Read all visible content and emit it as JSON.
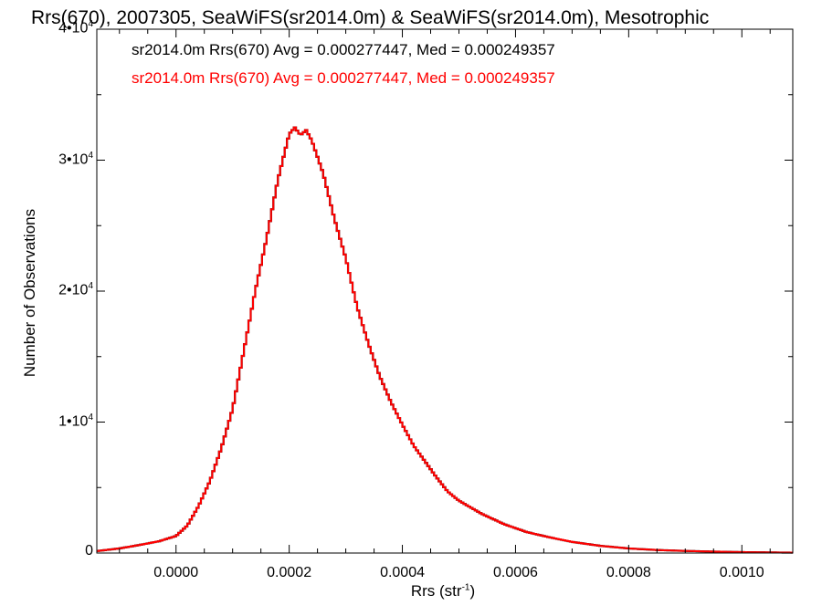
{
  "chart_data": {
    "type": "histogram",
    "title": "Rrs(670), 2007305, SeaWiFS(sr2014.0m) & SeaWiFS(sr2014.0m), Mesotrophic",
    "xlabel_base": "Rrs (str",
    "xlabel_exp": "-1",
    "xlabel_close": ")",
    "ylabel": "Number of Observations",
    "xlim": [
      -0.00014,
      0.00109
    ],
    "ylim": [
      0,
      40000
    ],
    "x_ticks": [
      {
        "value": 0.0,
        "label": "0.0000"
      },
      {
        "value": 0.0002,
        "label": "0.0002"
      },
      {
        "value": 0.0004,
        "label": "0.0004"
      },
      {
        "value": 0.0006,
        "label": "0.0006"
      },
      {
        "value": 0.0008,
        "label": "0.0008"
      },
      {
        "value": 0.001,
        "label": "0.0010"
      }
    ],
    "y_ticks": [
      {
        "value": 0,
        "label": "0",
        "exp": ""
      },
      {
        "value": 10000,
        "label": "1•10",
        "exp": "4"
      },
      {
        "value": 20000,
        "label": "2•10",
        "exp": "4"
      },
      {
        "value": 30000,
        "label": "3•10",
        "exp": "4"
      },
      {
        "value": 40000,
        "label": "4•10",
        "exp": "4"
      }
    ],
    "annotations": [
      {
        "text": "sr2014.0m Rrs(670) Avg = 0.000277447, Med = 0.000249357",
        "color": "#000000"
      },
      {
        "text": "sr2014.0m Rrs(670) Avg = 0.000277447, Med = 0.000249357",
        "color": "#ff0000"
      }
    ],
    "series": [
      {
        "color": "#ff0000",
        "points": [
          [
            -0.00014,
            150
          ],
          [
            -0.0001,
            350
          ],
          [
            -6e-05,
            650
          ],
          [
            -3e-05,
            900
          ],
          [
            0.0,
            1300
          ],
          [
            2e-05,
            2100
          ],
          [
            4e-05,
            3600
          ],
          [
            6e-05,
            5500
          ],
          [
            8e-05,
            8000
          ],
          [
            0.0001,
            11000
          ],
          [
            0.00012,
            15500
          ],
          [
            0.00014,
            20000
          ],
          [
            0.00016,
            24000
          ],
          [
            0.00018,
            28500
          ],
          [
            0.0002,
            32000
          ],
          [
            0.00021,
            32500
          ],
          [
            0.00022,
            31900
          ],
          [
            0.00023,
            32300
          ],
          [
            0.00024,
            31500
          ],
          [
            0.00026,
            29000
          ],
          [
            0.00028,
            25500
          ],
          [
            0.0003,
            22500
          ],
          [
            0.00032,
            18800
          ],
          [
            0.00034,
            16000
          ],
          [
            0.00036,
            13500
          ],
          [
            0.00038,
            11500
          ],
          [
            0.0004,
            9800
          ],
          [
            0.00042,
            8200
          ],
          [
            0.00044,
            7000
          ],
          [
            0.00046,
            5800
          ],
          [
            0.00048,
            4700
          ],
          [
            0.0005,
            4000
          ],
          [
            0.00054,
            3000
          ],
          [
            0.00058,
            2200
          ],
          [
            0.00062,
            1600
          ],
          [
            0.00066,
            1200
          ],
          [
            0.0007,
            850
          ],
          [
            0.00075,
            550
          ],
          [
            0.0008,
            350
          ],
          [
            0.00085,
            230
          ],
          [
            0.0009,
            160
          ],
          [
            0.00095,
            110
          ],
          [
            0.001,
            70
          ],
          [
            0.00105,
            45
          ],
          [
            0.00109,
            30
          ]
        ]
      }
    ]
  }
}
